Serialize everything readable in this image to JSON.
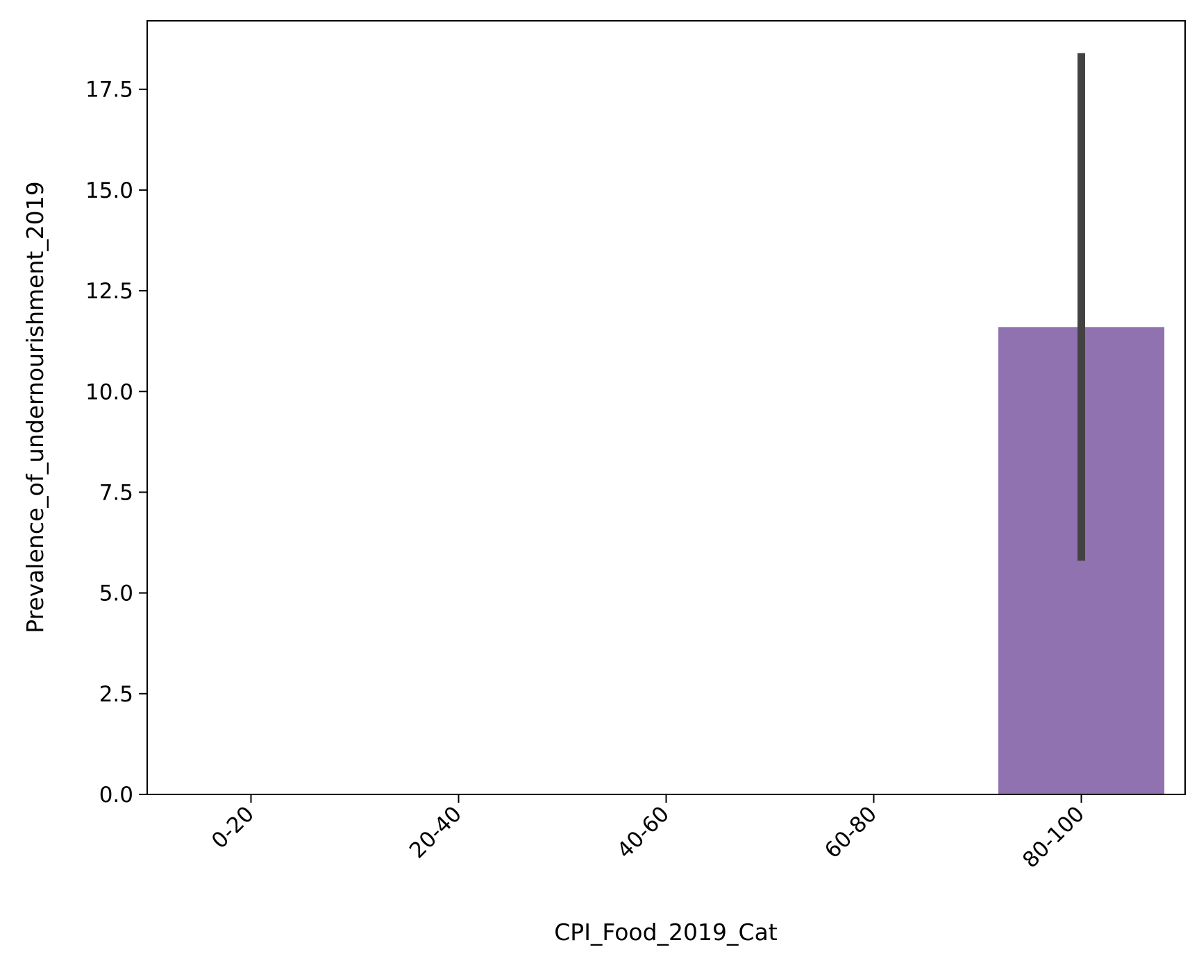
{
  "chart_data": {
    "type": "bar",
    "categories": [
      "0-20",
      "20-40",
      "40-60",
      "60-80",
      "80-100"
    ],
    "values": [
      null,
      null,
      null,
      null,
      11.6
    ],
    "error_bars": [
      null,
      null,
      null,
      null,
      [
        5.8,
        18.4
      ]
    ],
    "xlabel": "CPI_Food_2019_Cat",
    "ylabel": "Prevalence_of_undernourishment_2019",
    "ylim": [
      0,
      19.2
    ],
    "yticks": [
      "0.0",
      "2.5",
      "5.0",
      "7.5",
      "10.0",
      "12.5",
      "15.0",
      "17.5"
    ],
    "grid": false,
    "bar_color": "#9172b0",
    "error_color": "#424242"
  }
}
